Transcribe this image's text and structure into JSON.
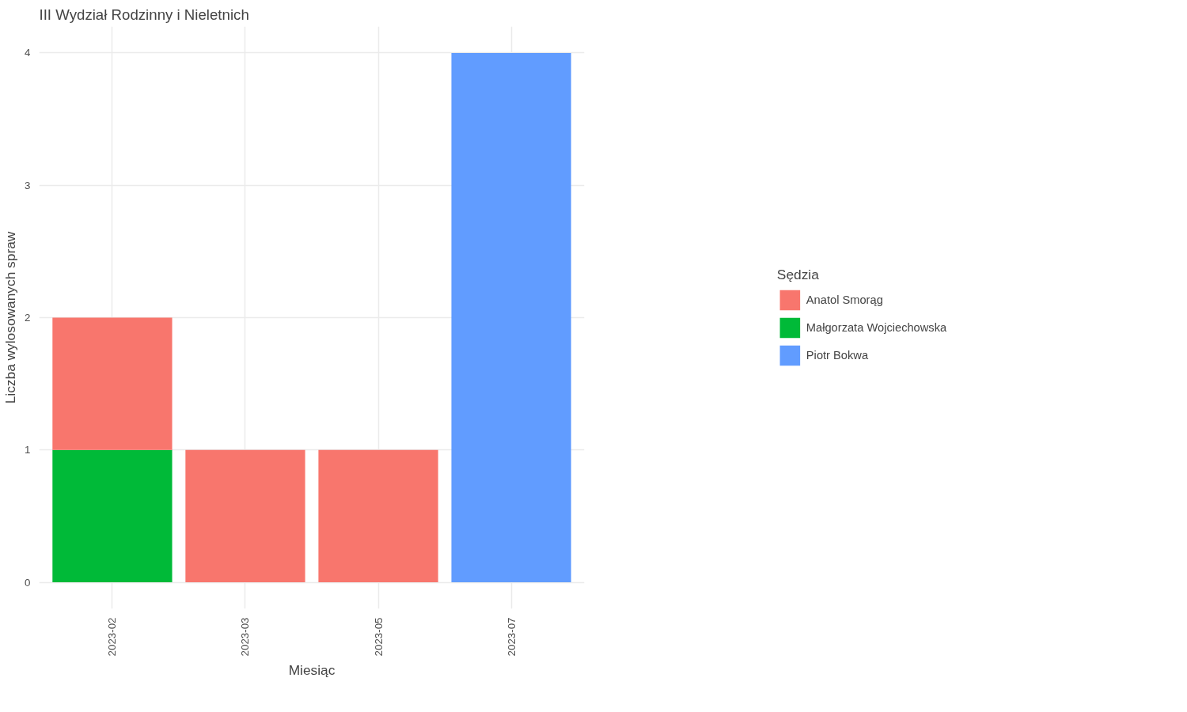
{
  "chart_data": {
    "type": "bar",
    "title": "III Wydział Rodzinny i Nieletnich",
    "xlabel": "Miesiąc",
    "ylabel": "Liczba wylosowanych spraw",
    "legend_title": "Sędzia",
    "categories": [
      "2023-02",
      "2023-03",
      "2023-05",
      "2023-07"
    ],
    "stacked": true,
    "ylim": [
      -0.2,
      4.2
    ],
    "yticks": [
      0,
      1,
      2,
      3,
      4
    ],
    "grid": true,
    "legend": "right",
    "series": [
      {
        "name": "Piotr Bokwa",
        "color": "#619cff",
        "values": [
          null,
          null,
          null,
          4
        ]
      },
      {
        "name": "Małgorzata Wojciechowska",
        "color": "#00ba38",
        "values": [
          1,
          null,
          null,
          null
        ]
      },
      {
        "name": "Anatol Smorąg",
        "color": "#f8766d",
        "values": [
          1,
          1,
          1,
          null
        ]
      }
    ]
  }
}
